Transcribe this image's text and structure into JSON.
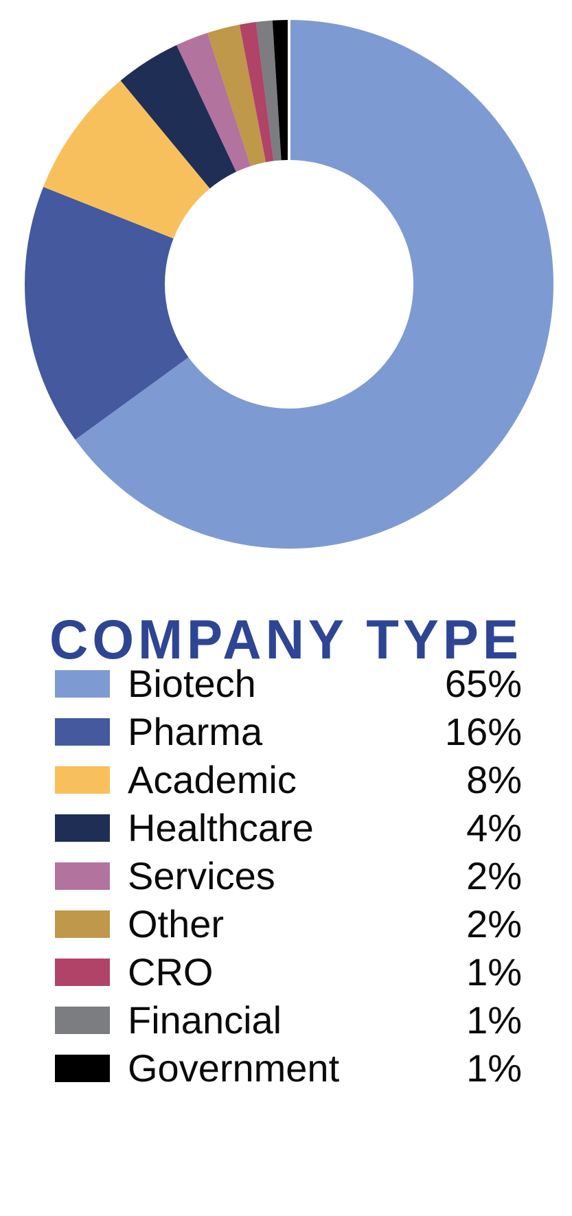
{
  "page": {
    "background_color": "#FFFFFF",
    "title_color": "#2E4594",
    "text_color": "#0A0A0A"
  },
  "chart_data": {
    "type": "pie",
    "subtype": "donut",
    "title": "COMPANY TYPE",
    "unit": "%",
    "start_angle_deg": 0,
    "direction": "clockwise",
    "inner_radius_ratio": 0.47,
    "legend_position": "bottom",
    "categories": [
      "Biotech",
      "Pharma",
      "Academic",
      "Healthcare",
      "Services",
      "Other",
      "CRO",
      "Financial",
      "Government"
    ],
    "values": [
      65,
      16,
      8,
      4,
      2,
      2,
      1,
      1,
      1
    ],
    "items": [
      {
        "label": "Biotech",
        "value": 65,
        "display": "65%",
        "color": "#7D9AD2"
      },
      {
        "label": "Pharma",
        "value": 16,
        "display": "16%",
        "color": "#44599E"
      },
      {
        "label": "Academic",
        "value": 8,
        "display": "8%",
        "color": "#F8C05C"
      },
      {
        "label": "Healthcare",
        "value": 4,
        "display": "4%",
        "color": "#1F2E55"
      },
      {
        "label": "Services",
        "value": 2,
        "display": "2%",
        "color": "#B2739E"
      },
      {
        "label": "Other",
        "value": 2,
        "display": "2%",
        "color": "#BF9849"
      },
      {
        "label": "CRO",
        "value": 1,
        "display": "1%",
        "color": "#B04367"
      },
      {
        "label": "Financial",
        "value": 1,
        "display": "1%",
        "color": "#7B7D80"
      },
      {
        "label": "Government",
        "value": 1,
        "display": "1%",
        "color": "#000000"
      }
    ]
  }
}
